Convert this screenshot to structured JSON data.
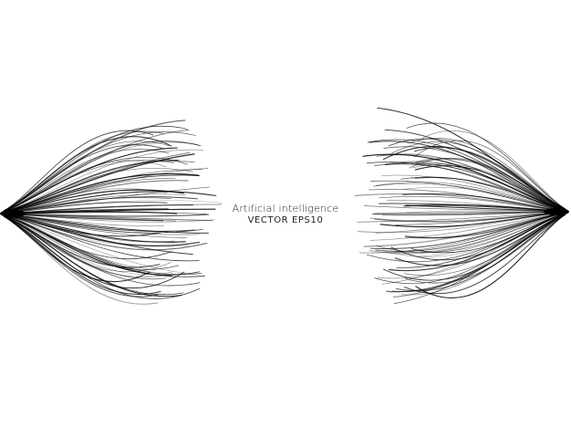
{
  "artwork": {
    "title": "Artificial intelligence",
    "subtitle": "VECTOR EPS10",
    "stroke_color": "#000000",
    "background_color": "#ffffff"
  }
}
